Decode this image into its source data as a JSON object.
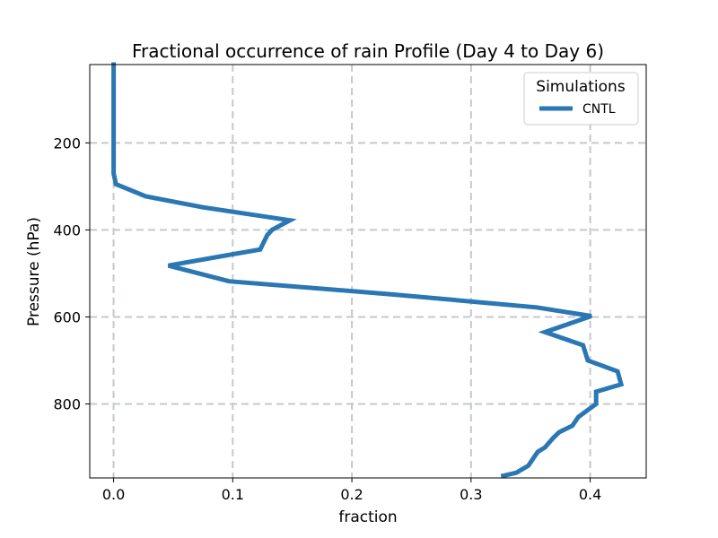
{
  "chart_data": {
    "type": "line",
    "title": "Fractional occurrence of rain Profile (Day 4 to Day 6)",
    "xlabel": "fraction",
    "ylabel": "Pressure (hPa)",
    "xlim": [
      -0.02,
      0.447
    ],
    "ylim": [
      970,
      20
    ],
    "y_inverted": true,
    "grid": true,
    "xticks": [
      0.0,
      0.1,
      0.2,
      0.3,
      0.4
    ],
    "xtick_labels": [
      "0.0",
      "0.1",
      "0.2",
      "0.3",
      "0.4"
    ],
    "yticks": [
      200,
      400,
      600,
      800
    ],
    "ytick_labels": [
      "200",
      "400",
      "600",
      "800"
    ],
    "legend": {
      "title": "Simulations",
      "position": "top-right"
    },
    "colors": {
      "series": "#2a77b4",
      "grid": "#c5c9c9"
    },
    "series": [
      {
        "name": "CNTL",
        "points": [
          [
            0.0,
            20
          ],
          [
            0.0,
            100
          ],
          [
            0.0,
            200
          ],
          [
            0.0,
            270
          ],
          [
            0.002,
            295
          ],
          [
            0.027,
            323
          ],
          [
            0.075,
            348
          ],
          [
            0.148,
            378
          ],
          [
            0.133,
            400
          ],
          [
            0.129,
            412
          ],
          [
            0.123,
            445
          ],
          [
            0.046,
            482
          ],
          [
            0.097,
            518
          ],
          [
            0.233,
            548
          ],
          [
            0.355,
            578
          ],
          [
            0.401,
            598
          ],
          [
            0.362,
            635
          ],
          [
            0.394,
            665
          ],
          [
            0.398,
            700
          ],
          [
            0.423,
            725
          ],
          [
            0.426,
            755
          ],
          [
            0.405,
            772
          ],
          [
            0.405,
            800
          ],
          [
            0.395,
            820
          ],
          [
            0.39,
            830
          ],
          [
            0.385,
            850
          ],
          [
            0.374,
            865
          ],
          [
            0.369,
            878
          ],
          [
            0.362,
            900
          ],
          [
            0.356,
            910
          ],
          [
            0.353,
            922
          ],
          [
            0.348,
            942
          ],
          [
            0.338,
            958
          ],
          [
            0.327,
            965
          ]
        ]
      }
    ]
  }
}
